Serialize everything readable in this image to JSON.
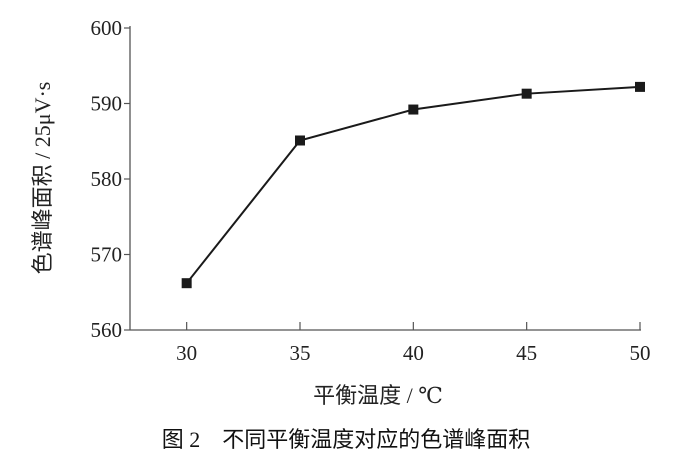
{
  "chart_data": {
    "type": "line",
    "title": "",
    "caption": "图 2　不同平衡温度对应的色谱峰面积",
    "xlabel": "平衡温度 / ℃",
    "ylabel": "色谱峰面积 / 25μV·s",
    "x": [
      30,
      35,
      40,
      45,
      50
    ],
    "series": [
      {
        "values": [
          566.2,
          585.1,
          589.2,
          591.3,
          592.2
        ],
        "marker": "square",
        "color": "#1a1a1a"
      }
    ],
    "xticks": [
      "30",
      "35",
      "40",
      "45",
      "50"
    ],
    "yticks": [
      "560",
      "570",
      "580",
      "590",
      "600"
    ],
    "xlim": [
      27.5,
      50
    ],
    "ylim": [
      560,
      600
    ],
    "grid": false,
    "legend": "none"
  }
}
